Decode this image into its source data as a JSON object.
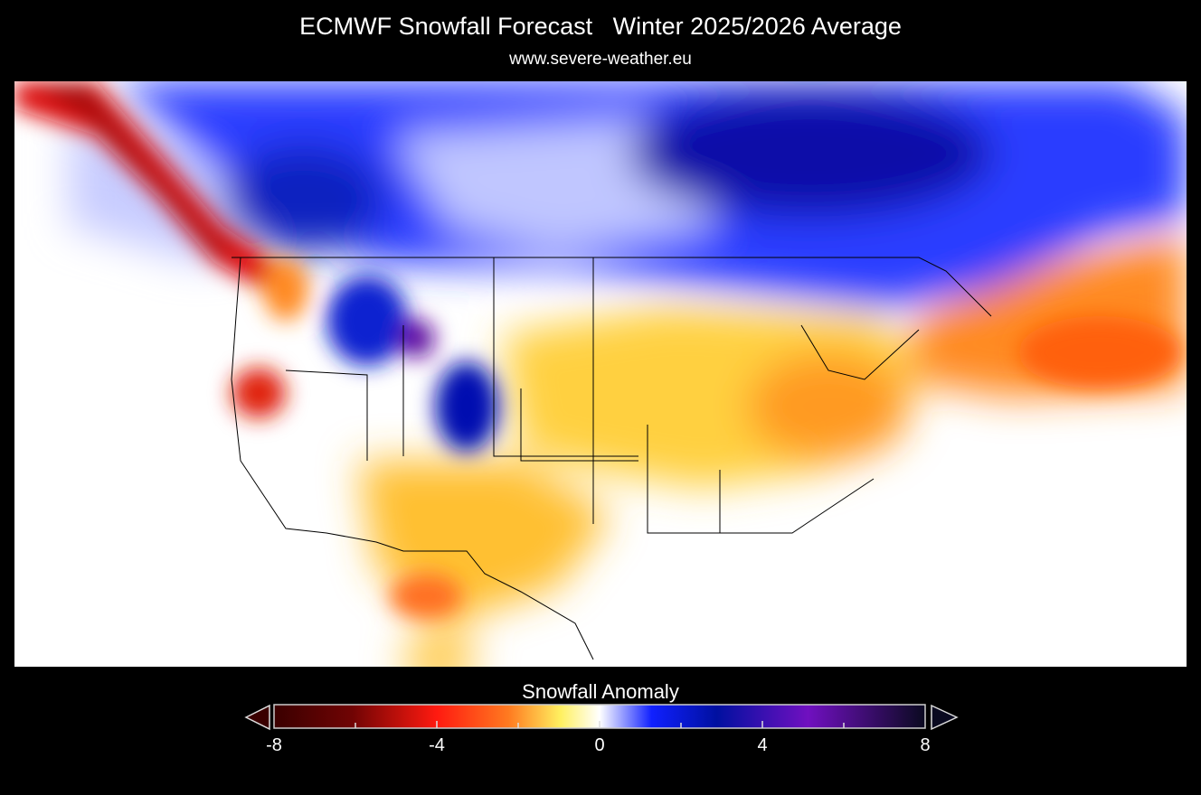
{
  "header": {
    "title": "ECMWF Snowfall Forecast   Winter 2025/2026 Average",
    "subtitle": "www.severe-weather.eu"
  },
  "map": {
    "region": "North America (contiguous US and southern Canada)",
    "variable": "Snowfall Anomaly"
  },
  "legend": {
    "title": "Snowfall Anomaly",
    "min": -8,
    "max": 8,
    "tick_labels": [
      "-8",
      "-4",
      "0",
      "4",
      "8"
    ],
    "colors": [
      "#3a0000",
      "#8b0a0a",
      "#ff1a10",
      "#ff8a20",
      "#fff060",
      "#ffffff",
      "#1020ff",
      "#0010a0",
      "#7010c0",
      "#0a0a20"
    ]
  }
}
